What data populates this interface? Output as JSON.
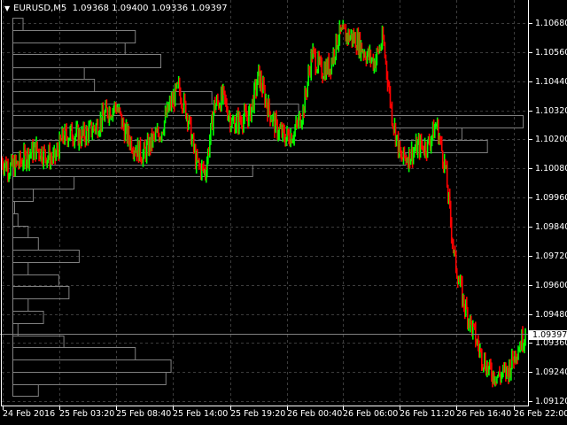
{
  "header": {
    "symbol": "EURUSD,M5",
    "ohlc": "1.09368 1.09400 1.09336 1.09397"
  },
  "colors": {
    "bull": "#00ff00",
    "bear": "#ff0000",
    "grid": "#3c3c3c",
    "profile": "#808080",
    "axis": "#ffffff"
  },
  "bid_label": "1.09397",
  "chart_data": {
    "type": "candlestick",
    "symbol": "EURUSD",
    "timeframe": "M5",
    "ylim": [
      1.0911,
      1.10742
    ],
    "y_ticks": [
      "1.10680",
      "1.10560",
      "1.10440",
      "1.10320",
      "1.10200",
      "1.10080",
      "1.09960",
      "1.09840",
      "1.09720",
      "1.09600",
      "1.09480",
      "1.09360",
      "1.09240",
      "1.09120"
    ],
    "x_ticks": [
      "24 Feb 2016",
      "25 Feb 03:20",
      "25 Feb 08:40",
      "25 Feb 14:00",
      "25 Feb 19:20",
      "26 Feb 00:40",
      "26 Feb 06:00",
      "26 Feb 11:20",
      "26 Feb 16:40",
      "26 Feb 22:00"
    ],
    "grid": true,
    "approx_close": [
      1.10117,
      1.10081,
      1.10099,
      1.10136,
      1.10161,
      1.10136,
      1.10117,
      1.10209,
      1.10227,
      1.10209,
      1.10234,
      1.10264,
      1.10318,
      1.10337,
      1.10227,
      1.10172,
      1.10136,
      1.10191,
      1.10234,
      1.10337,
      1.1041,
      1.103,
      1.10099,
      1.10063,
      1.10337,
      1.10373,
      1.10264,
      1.10282,
      1.103,
      1.10464,
      1.10337,
      1.10245,
      1.10209,
      1.10227,
      1.10318,
      1.10556,
      1.10483,
      1.10501,
      1.10629,
      1.10629,
      1.10611,
      1.10556,
      1.10519,
      1.10611,
      1.103,
      1.10117,
      1.10136,
      1.10172,
      1.10172,
      1.10264,
      1.10081,
      1.09716,
      1.09533,
      1.09423,
      1.09314,
      1.09241,
      1.09222,
      1.09241,
      1.09332,
      1.09397
    ],
    "last_price": 1.09397,
    "volume_profile_relative": [
      0.02,
      0.24,
      0.22,
      0.29,
      0.14,
      0.16,
      0.39,
      0.56,
      1.0,
      0.88,
      0.93,
      0.77,
      0.47,
      0.12,
      0.04,
      0.0,
      0.01,
      0.03,
      0.05,
      0.13,
      0.03,
      0.09,
      0.11,
      0.03,
      0.06,
      0.01,
      0.1,
      0.24,
      0.31,
      0.3,
      0.05
    ]
  }
}
